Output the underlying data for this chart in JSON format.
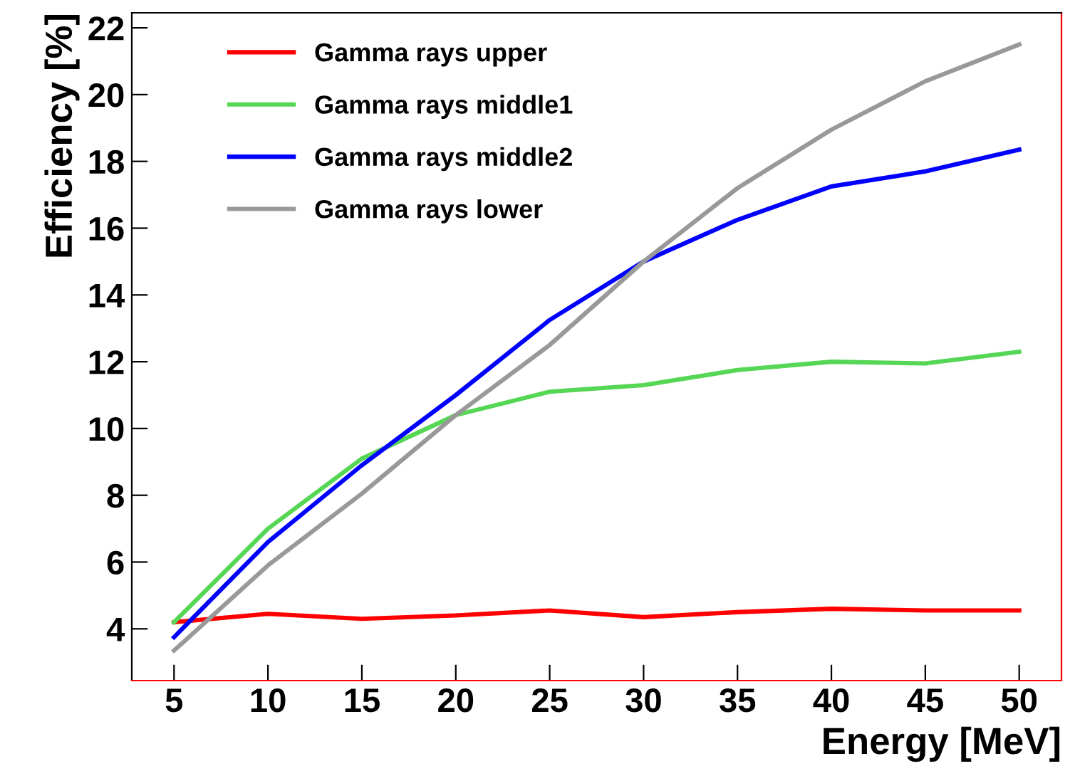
{
  "chart_data": {
    "type": "line",
    "xlabel": "Energy [MeV]",
    "ylabel": "Efficiency [%]",
    "x": [
      5,
      10,
      15,
      20,
      25,
      30,
      35,
      40,
      45,
      50
    ],
    "series": [
      {
        "name": "Gamma rays upper",
        "color": "#ff0000",
        "values": [
          4.2,
          4.45,
          4.3,
          4.4,
          4.55,
          4.35,
          4.5,
          4.6,
          4.55,
          4.55
        ]
      },
      {
        "name": "Gamma rays middle1",
        "color": "#55d655",
        "values": [
          4.2,
          7.0,
          9.1,
          10.4,
          11.1,
          11.3,
          11.75,
          12.0,
          11.95,
          12.3
        ]
      },
      {
        "name": "Gamma rays middle2",
        "color": "#0000ff",
        "values": [
          3.75,
          6.6,
          8.9,
          11.0,
          13.25,
          15.0,
          16.25,
          17.25,
          17.7,
          18.35
        ]
      },
      {
        "name": "Gamma rays lower",
        "color": "#999999",
        "values": [
          3.35,
          5.9,
          8.05,
          10.4,
          12.5,
          15.0,
          17.2,
          18.95,
          20.4,
          21.5
        ]
      }
    ],
    "xlim": [
      2.75,
      52.25
    ],
    "ylim": [
      2.45,
      22.45
    ],
    "xticks": [
      5,
      10,
      15,
      20,
      25,
      30,
      35,
      40,
      45,
      50
    ],
    "yticks": [
      4,
      6,
      8,
      10,
      12,
      14,
      16,
      18,
      20,
      22
    ],
    "grid": false,
    "legend": "top left",
    "marker": "none",
    "line_style": "solid"
  }
}
